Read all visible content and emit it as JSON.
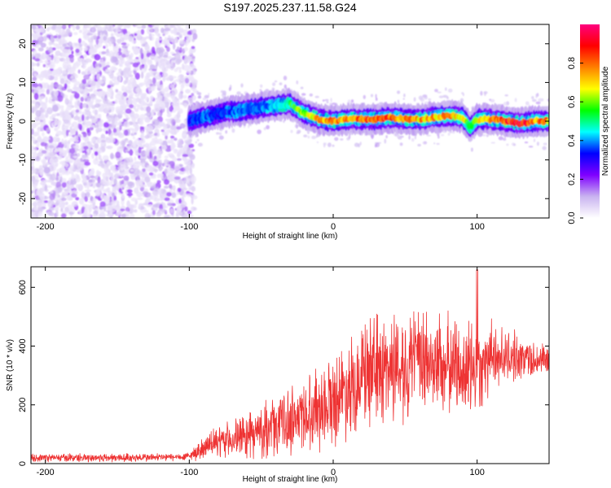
{
  "title": "S197.2025.237.11.58.G24",
  "chart_data": [
    {
      "type": "heatmap",
      "title": "S197.2025.237.11.58.G24",
      "xlabel": "Height of straight line (km)",
      "ylabel": "Frequency (Hz)",
      "xlim": [
        -210,
        150
      ],
      "ylim": [
        -25,
        25
      ],
      "xticks": [
        -200,
        -100,
        0,
        100
      ],
      "yticks": [
        -20,
        -10,
        0,
        10,
        20
      ],
      "colorbar": {
        "label": "Normalized spectral amplitude",
        "range": [
          0,
          1
        ],
        "ticks": [
          "0.0",
          "0.2",
          "0.4",
          "0.6",
          "0.8"
        ],
        "colors": [
          "#ffffff",
          "#c9b3f0",
          "#7f00ff",
          "#0000ff",
          "#00ffff",
          "#00ff00",
          "#ffff00",
          "#ff8000",
          "#ff0000",
          "#ff007f"
        ]
      },
      "ridge": {
        "x": [
          -100,
          -90,
          -80,
          -70,
          -60,
          -50,
          -40,
          -30,
          -20,
          -10,
          0,
          10,
          20,
          30,
          40,
          50,
          60,
          70,
          80,
          90,
          95,
          100,
          110,
          120,
          130,
          140,
          150
        ],
        "freq": [
          0,
          1,
          2,
          2.5,
          3,
          3.5,
          4,
          4.5,
          2,
          0.5,
          0,
          0.5,
          0.5,
          0.5,
          1,
          0.5,
          0.5,
          1,
          1.5,
          1,
          -1.5,
          0.5,
          0.5,
          0,
          -0.5,
          0,
          0
        ],
        "amplitude": [
          0.35,
          0.4,
          0.35,
          0.4,
          0.4,
          0.4,
          0.45,
          0.55,
          0.7,
          0.8,
          0.85,
          0.85,
          0.88,
          0.9,
          0.85,
          0.82,
          0.8,
          0.8,
          0.8,
          0.75,
          0.5,
          0.7,
          0.8,
          0.9,
          0.95,
          0.85,
          0.8
        ]
      },
      "noise_region": {
        "x_range": [
          -210,
          -100
        ],
        "amplitude": "low (0.05-0.15)"
      }
    },
    {
      "type": "line",
      "xlabel": "Height of straight line (km)",
      "ylabel": "SNR (10 * v/v)",
      "xlim": [
        -210,
        150
      ],
      "ylim": [
        0,
        670
      ],
      "xticks": [
        -200,
        -100,
        0,
        100
      ],
      "yticks": [
        0,
        200,
        400,
        600
      ],
      "color": "#ee3333",
      "envelope": {
        "x": [
          -210,
          -150,
          -105,
          -100,
          -90,
          -80,
          -70,
          -60,
          -50,
          -40,
          -30,
          -20,
          -10,
          0,
          10,
          20,
          30,
          40,
          50,
          60,
          70,
          80,
          90,
          95,
          100,
          105,
          110,
          120,
          130,
          140,
          150
        ],
        "mean": [
          20,
          20,
          22,
          25,
          55,
          70,
          85,
          95,
          110,
          130,
          150,
          170,
          195,
          220,
          260,
          300,
          320,
          330,
          340,
          345,
          340,
          335,
          330,
          300,
          330,
          350,
          360,
          365,
          360,
          355,
          350
        ],
        "spread": [
          10,
          12,
          10,
          12,
          30,
          40,
          50,
          60,
          70,
          80,
          90,
          100,
          110,
          120,
          130,
          140,
          150,
          150,
          150,
          140,
          140,
          130,
          130,
          140,
          130,
          110,
          90,
          70,
          60,
          50,
          40
        ]
      }
    }
  ]
}
